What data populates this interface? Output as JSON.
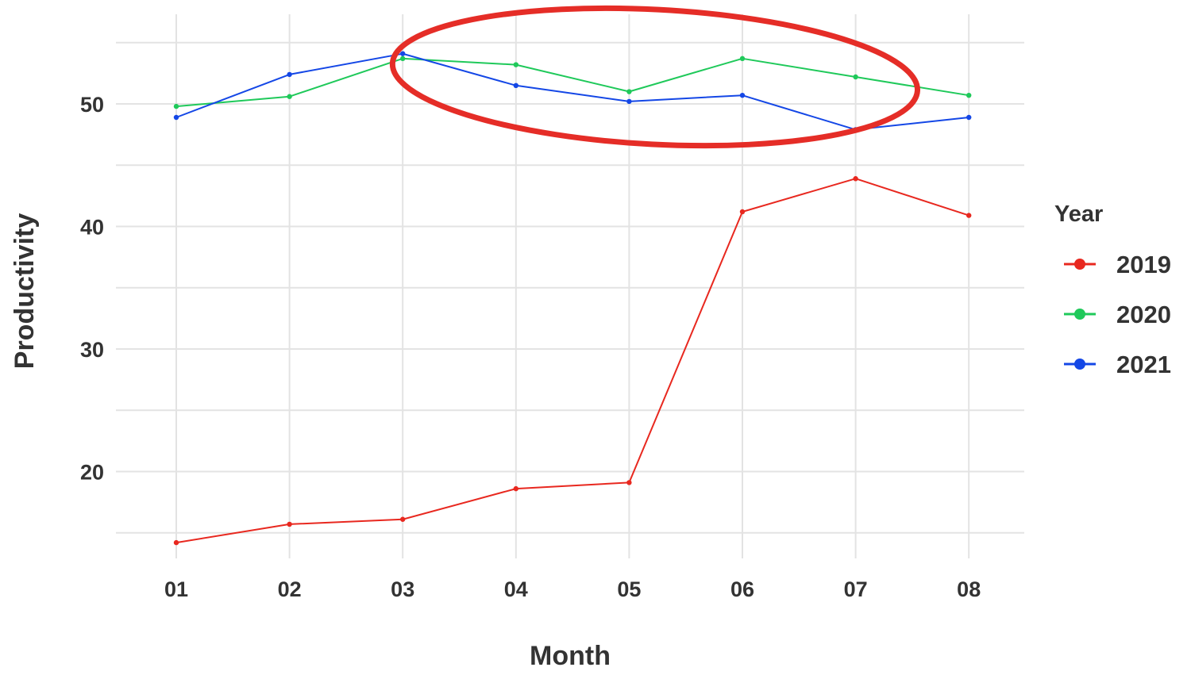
{
  "chart_data": {
    "type": "line",
    "categories": [
      "01",
      "02",
      "03",
      "04",
      "05",
      "06",
      "07",
      "08"
    ],
    "series": [
      {
        "name": "2019",
        "color": "#e8281f",
        "values": [
          14.2,
          15.7,
          16.1,
          18.6,
          19.1,
          41.2,
          43.9,
          40.9
        ]
      },
      {
        "name": "2020",
        "color": "#1fc95a",
        "values": [
          49.8,
          50.6,
          53.7,
          53.2,
          51.0,
          53.7,
          52.2,
          50.7
        ]
      },
      {
        "name": "2021",
        "color": "#1447e6",
        "values": [
          48.9,
          52.4,
          54.1,
          51.5,
          50.2,
          50.7,
          47.9,
          48.9
        ]
      }
    ],
    "xlabel": "Month",
    "ylabel": "Productivity",
    "yticks": [
      20,
      30,
      40,
      50
    ],
    "ylim": [
      12,
      57
    ],
    "legend_title": "Year",
    "legend_position": "right",
    "grid": true,
    "annotation": {
      "shape": "ellipse",
      "color": "#e52d27",
      "center_x": 5.2,
      "center_y": 52.2
    }
  }
}
